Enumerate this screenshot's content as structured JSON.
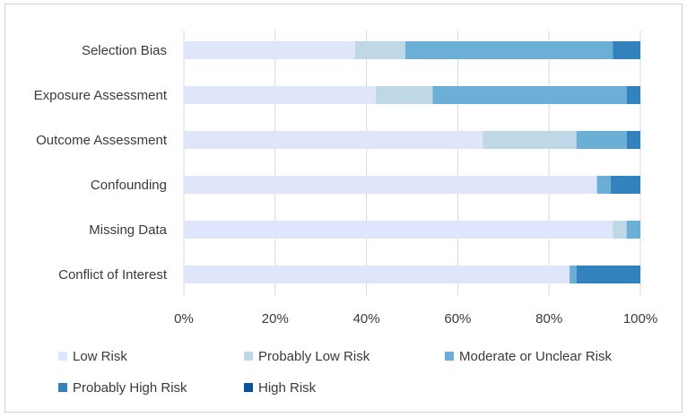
{
  "chart_data": {
    "type": "bar",
    "orientation": "horizontal",
    "stacked": "percent",
    "categories": [
      "Selection Bias",
      "Exposure Assessment",
      "Outcome Assessment",
      "Confounding",
      "Missing Data",
      "Conflict of Interest"
    ],
    "series": [
      {
        "name": "Low Risk",
        "color": "#dfe5fb",
        "values": [
          37.5,
          42,
          65.5,
          90.5,
          94,
          84.5
        ]
      },
      {
        "name": "Probably Low Risk",
        "color": "#bed8e8",
        "values": [
          11,
          12.5,
          20.5,
          0,
          3,
          0
        ]
      },
      {
        "name": "Moderate or Unclear Risk",
        "color": "#6baed6",
        "values": [
          45.5,
          42.5,
          11,
          3,
          3,
          1.5
        ]
      },
      {
        "name": "Probably High Risk",
        "color": "#3182bd",
        "values": [
          6,
          3,
          3,
          6.5,
          0,
          14
        ]
      },
      {
        "name": "High Risk",
        "color": "#08519c",
        "values": [
          0,
          0,
          0,
          0,
          0,
          0
        ]
      }
    ],
    "xlim": [
      0,
      100
    ],
    "xticks": [
      "0%",
      "20%",
      "40%",
      "60%",
      "80%",
      "100%"
    ],
    "grid": "vertical",
    "legend_position": "bottom"
  }
}
